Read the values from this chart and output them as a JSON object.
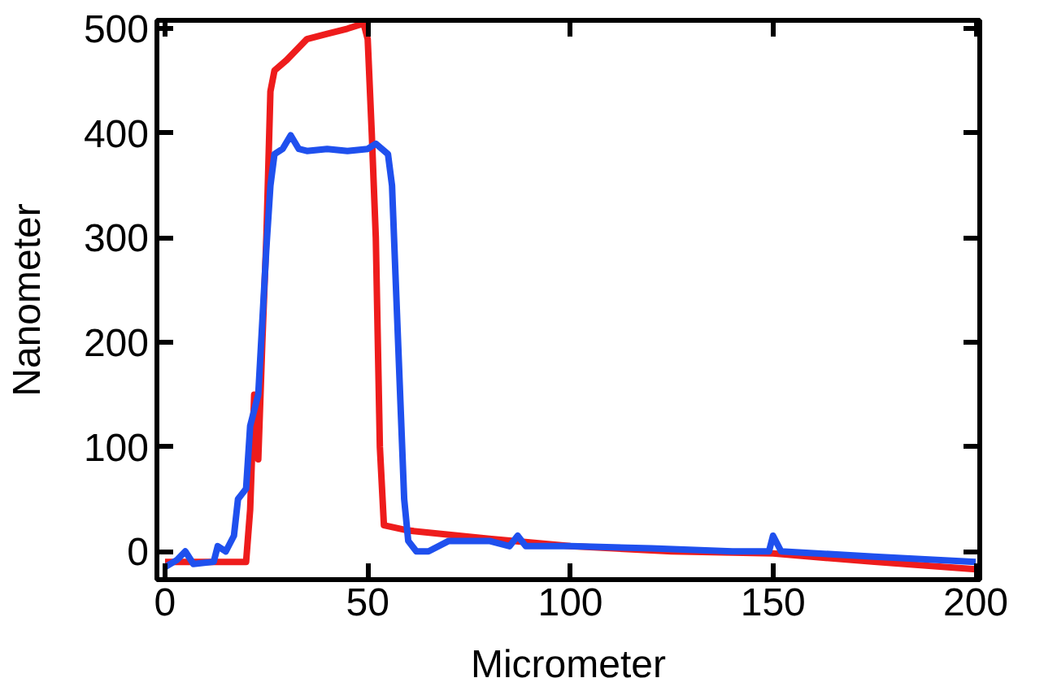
{
  "chart_data": {
    "type": "line",
    "xlabel": "Micrometer",
    "ylabel": "Nanometer",
    "xlim": [
      -2,
      201
    ],
    "ylim": [
      -27,
      508
    ],
    "xticks": [
      0,
      50,
      100,
      150,
      200
    ],
    "yticks": [
      0,
      100,
      200,
      300,
      400,
      500
    ],
    "grid": false,
    "line_style": "solid",
    "marker": "none",
    "series": [
      {
        "color": "#ee1c1c",
        "x": [
          0,
          5,
          10,
          15,
          20,
          21,
          22,
          23,
          24,
          25,
          26,
          27,
          30,
          35,
          40,
          45,
          49,
          50,
          51,
          52,
          53,
          54,
          60,
          80,
          100,
          125,
          150,
          175,
          200
        ],
        "values": [
          -10,
          -10,
          -10,
          -10,
          -10,
          40,
          150,
          88,
          200,
          300,
          440,
          460,
          470,
          490,
          495,
          500,
          505,
          490,
          400,
          300,
          100,
          25,
          20,
          12,
          5,
          0,
          -2,
          -10,
          -17
        ]
      },
      {
        "color": "#1f50ee",
        "x": [
          0,
          3,
          5,
          7,
          12,
          13,
          15,
          17,
          18,
          20,
          21,
          23,
          24,
          25,
          26,
          27,
          29,
          31,
          33,
          35,
          40,
          45,
          50,
          52,
          55,
          56,
          57,
          58,
          59,
          60,
          62,
          65,
          70,
          80,
          85,
          87,
          89,
          100,
          120,
          140,
          149,
          150,
          152,
          175,
          200
        ],
        "values": [
          -15,
          -8,
          0,
          -12,
          -10,
          5,
          0,
          15,
          50,
          60,
          120,
          150,
          220,
          290,
          350,
          380,
          385,
          398,
          385,
          383,
          385,
          383,
          385,
          390,
          380,
          350,
          250,
          150,
          50,
          10,
          0,
          0,
          10,
          10,
          5,
          15,
          5,
          5,
          3,
          0,
          0,
          15,
          0,
          -5,
          -10
        ]
      }
    ]
  }
}
